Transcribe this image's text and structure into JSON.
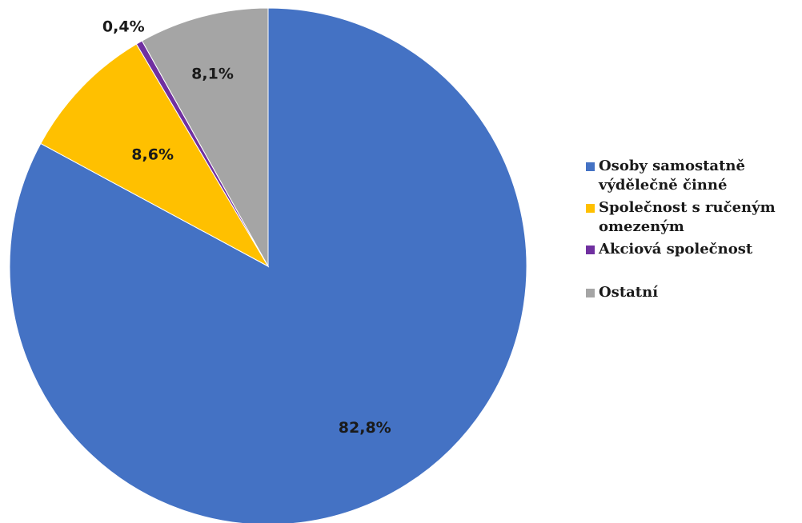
{
  "chart_data": {
    "type": "pie",
    "title": "",
    "start_angle_deg": 0,
    "direction": "clockwise",
    "legend_position": "right",
    "slices": [
      {
        "label": "Osoby samostatně výdělečně činné",
        "value": 82.8,
        "display": "82,8%",
        "color": "#4472C4"
      },
      {
        "label": "Společnost s ručeným omezeným",
        "value": 8.6,
        "display": "8,6%",
        "color": "#FFC000"
      },
      {
        "label": "Akciová společnost",
        "value": 0.4,
        "display": "0,4%",
        "color": "#7030A0"
      },
      {
        "label": "Ostatní",
        "value": 8.1,
        "display": "8,1%",
        "color": "#A5A5A5"
      }
    ]
  },
  "legend": {
    "items": [
      {
        "label": "Osoby samostatně výdělečně činné",
        "color": "#4472C4"
      },
      {
        "label": "Společnost s ručeným omezeným",
        "color": "#FFC000"
      },
      {
        "label": "Akciová společnost",
        "color": "#7030A0"
      },
      {
        "label": "Ostatní",
        "color": "#A5A5A5"
      }
    ]
  }
}
